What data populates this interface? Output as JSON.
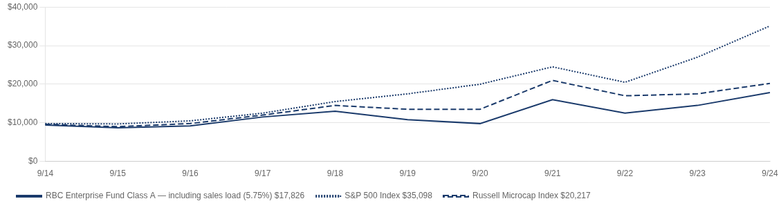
{
  "chart_data": {
    "type": "line",
    "categories": [
      "9/14",
      "9/15",
      "9/16",
      "9/17",
      "9/18",
      "9/19",
      "9/20",
      "9/21",
      "9/22",
      "9/23",
      "9/24"
    ],
    "series": [
      {
        "name": "RBC Enterprise Fund Class A — including sales load (5.75%) $17,826",
        "color": "#1a3a6b",
        "line_style": "solid",
        "values": [
          9425,
          8700,
          9200,
          11500,
          13000,
          10800,
          9800,
          16000,
          12500,
          14500,
          17826
        ]
      },
      {
        "name": "S&P 500 Index $35,098",
        "color": "#1a3a6b",
        "line_style": "dotted",
        "values": [
          9800,
          9700,
          10500,
          12500,
          15500,
          17500,
          20000,
          24500,
          20500,
          27000,
          35098
        ]
      },
      {
        "name": "Russell Microcap Index $20,217",
        "color": "#1a3a6b",
        "line_style": "dashed",
        "values": [
          9600,
          9000,
          9800,
          12000,
          14500,
          13500,
          13500,
          21000,
          17000,
          17500,
          20217
        ]
      }
    ],
    "ylim": [
      0,
      40000
    ],
    "yticks": [
      {
        "value": 0,
        "label": "$0"
      },
      {
        "value": 10000,
        "label": "$10,000"
      },
      {
        "value": 20000,
        "label": "$20,000"
      },
      {
        "value": 30000,
        "label": "$30,000"
      },
      {
        "value": 40000,
        "label": "$40,000"
      }
    ],
    "grid": true,
    "legend": "lower left"
  }
}
